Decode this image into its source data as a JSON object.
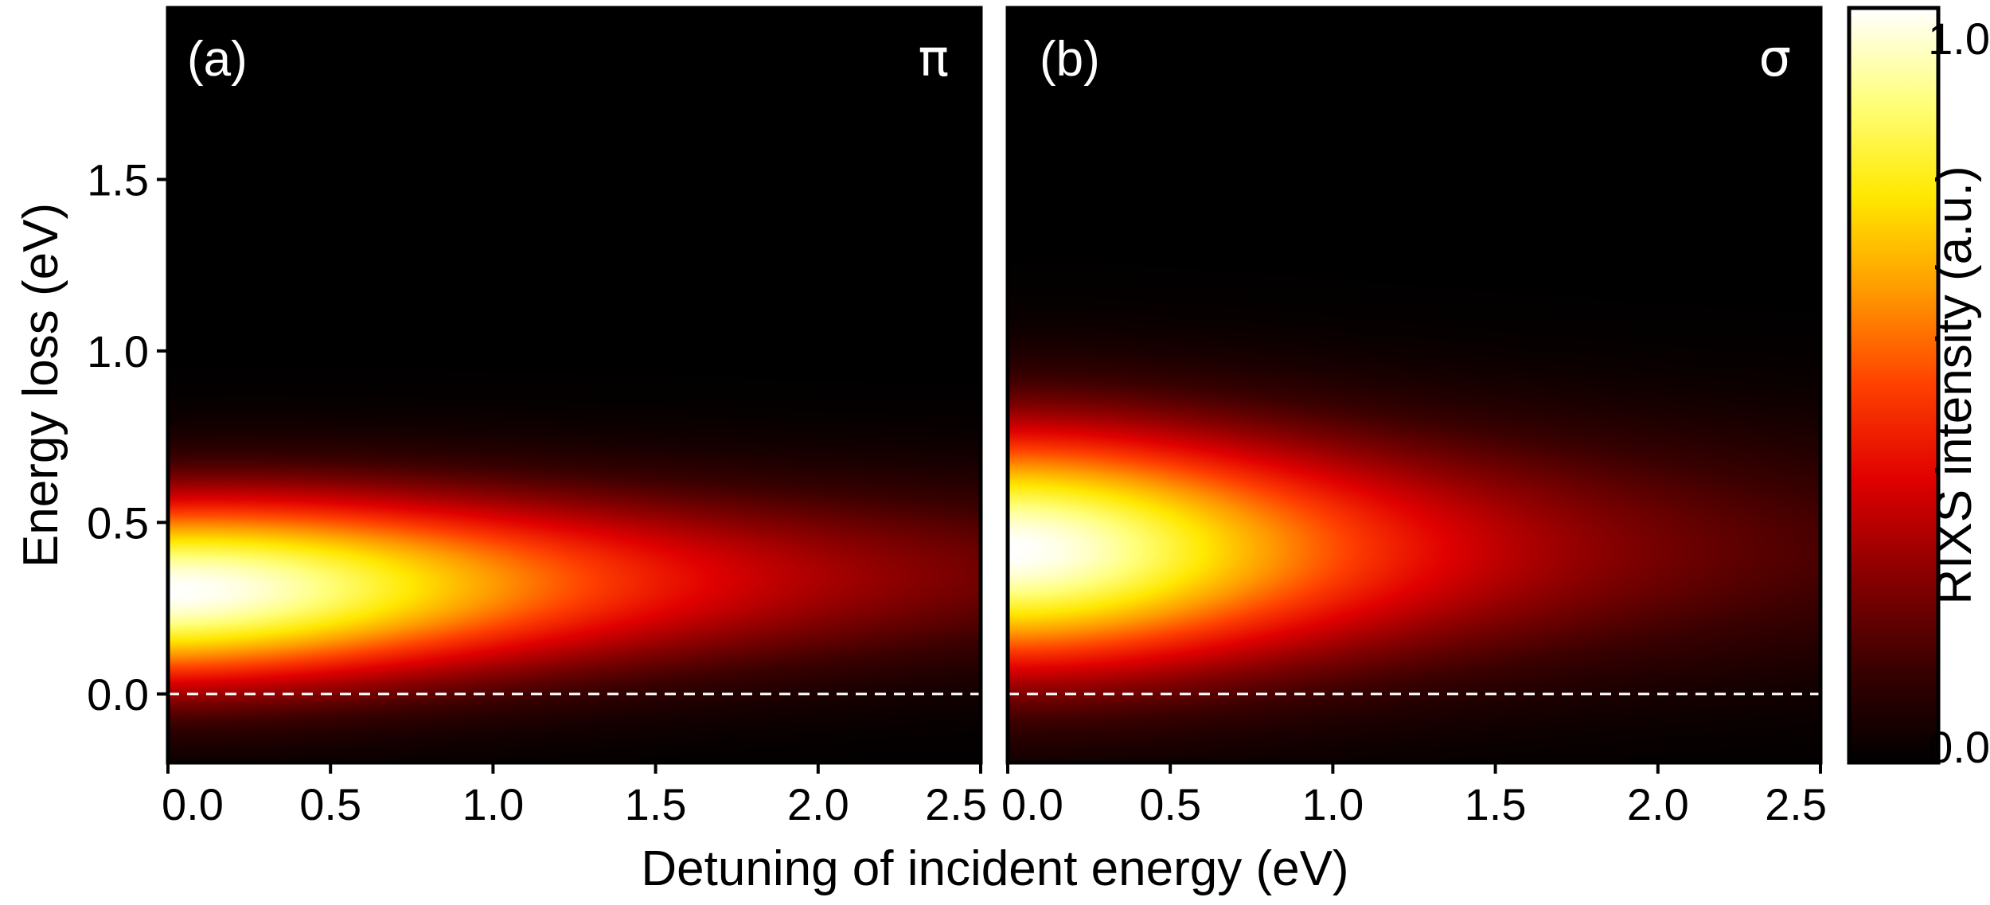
{
  "chart_data": {
    "type": "heatmap",
    "xlabel": "Detuning of incident energy (eV)",
    "ylabel": "Energy loss (eV)",
    "xlim": [
      0.0,
      2.5
    ],
    "ylim": [
      -0.2,
      2.0
    ],
    "x_ticks": [
      "0.0",
      "0.5",
      "1.0",
      "1.5",
      "2.0",
      "2.5"
    ],
    "y_ticks": [
      "0.0",
      "0.5",
      "1.0",
      "1.5"
    ],
    "reference_line": {
      "y": 0.0,
      "style": "dashed",
      "color": "#ffffff"
    },
    "colorbar": {
      "label": "RIXS intensity (a.u.)",
      "range": [
        0.0,
        1.0
      ],
      "ticks": [
        "0.0",
        "1.0"
      ],
      "colormap": [
        "#000000",
        "#3a0000",
        "#8b0000",
        "#e00000",
        "#ff4000",
        "#ff9a00",
        "#ffe800",
        "#ffff7a",
        "#ffffff"
      ]
    },
    "panels": [
      {
        "label": "(a)",
        "polarization": "π",
        "peak": {
          "x": 0.0,
          "y": 0.3,
          "intensity": 1.0
        },
        "model": {
          "peak_energy": 0.3,
          "energy_width": 0.27,
          "detuning_decay": 1.3,
          "peak_shift_per_eV": 0.02,
          "width_growth_per_eV": 0.0
        }
      },
      {
        "label": "(b)",
        "polarization": "σ",
        "peak": {
          "x": 0.0,
          "y": 0.42,
          "intensity": 1.0
        },
        "model": {
          "peak_energy": 0.42,
          "energy_width": 0.35,
          "detuning_decay": 1.05,
          "peak_shift_per_eV": 0.0,
          "width_growth_per_eV": 0.0
        }
      }
    ]
  }
}
